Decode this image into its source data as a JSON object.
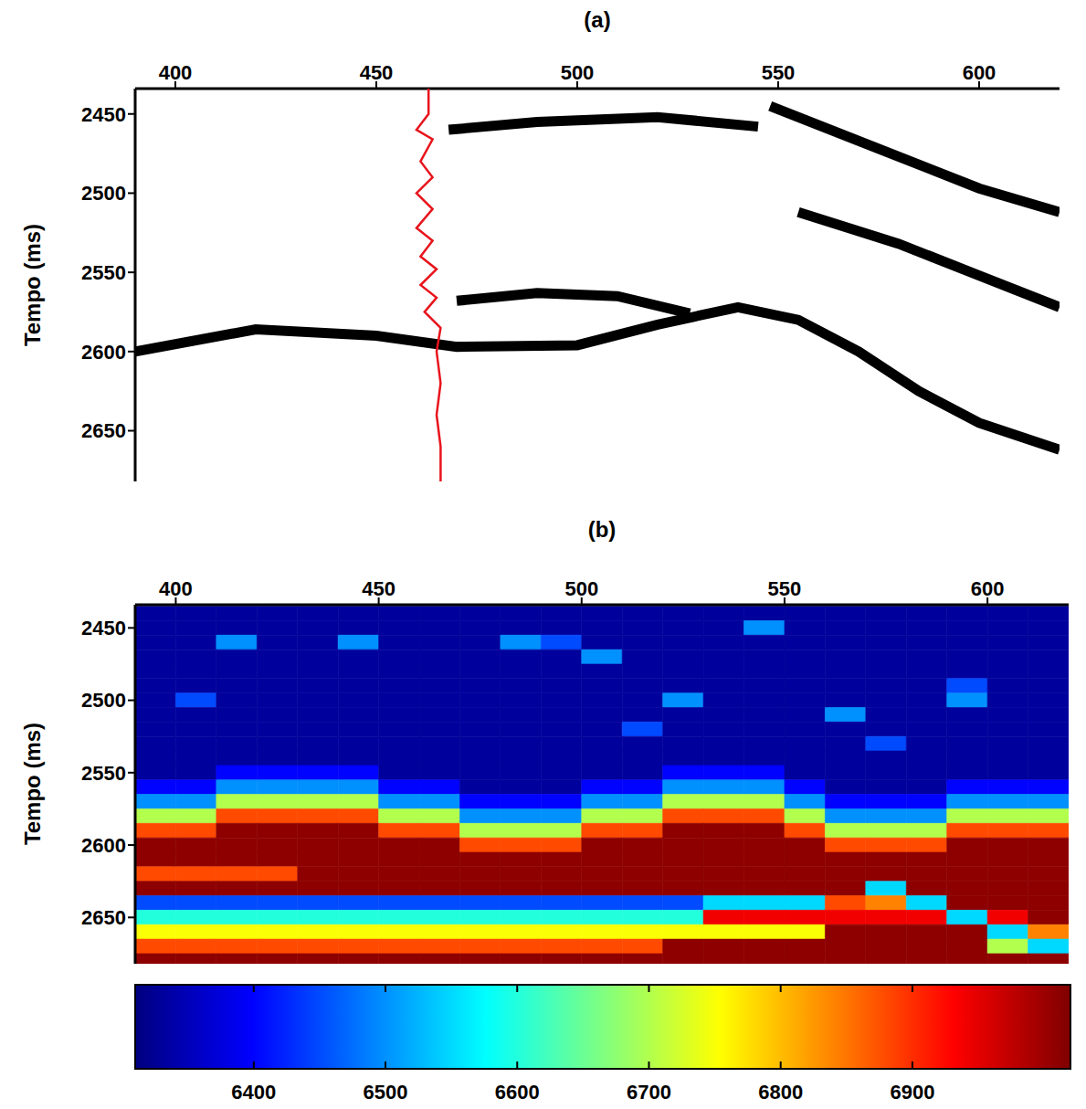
{
  "chart_data": [
    {
      "type": "line",
      "title": "(a)",
      "y_label": "Tempo (ms)",
      "xlim": [
        390,
        620
      ],
      "xticks": [
        400,
        450,
        500,
        550,
        600
      ],
      "ylim": [
        2434,
        2682
      ],
      "yticks": [
        2450,
        2500,
        2550,
        2600,
        2650
      ],
      "series": [
        {
          "color": "#000000",
          "line_style": "thick",
          "x": [
            468,
            490,
            520,
            545
          ],
          "values": [
            2460,
            2455,
            2452,
            2458
          ]
        },
        {
          "color": "#000000",
          "line_style": "thick",
          "x": [
            548,
            575,
            600,
            620
          ],
          "values": [
            2445,
            2472,
            2497,
            2512
          ]
        },
        {
          "color": "#000000",
          "line_style": "thick",
          "x": [
            555,
            580,
            600,
            620
          ],
          "values": [
            2512,
            2532,
            2552,
            2572
          ]
        },
        {
          "color": "#000000",
          "line_style": "thick",
          "x": [
            390,
            420,
            450,
            470,
            500,
            520,
            540,
            555,
            570,
            585,
            600,
            620
          ],
          "values": [
            2600,
            2586,
            2590,
            2597,
            2596,
            2583,
            2572,
            2580,
            2600,
            2625,
            2645,
            2662
          ]
        },
        {
          "color": "#000000",
          "line_style": "thick",
          "x": [
            470,
            490,
            510,
            528
          ],
          "values": [
            2568,
            2563,
            2565,
            2576
          ]
        },
        {
          "color": "#e8141c",
          "line_style": "solid",
          "x": [
            463,
            463,
            460,
            464,
            461,
            464,
            460,
            464,
            460,
            464,
            461,
            465,
            461,
            465,
            462,
            466,
            465,
            466,
            465,
            466,
            466
          ],
          "values": [
            2434,
            2450,
            2460,
            2466,
            2480,
            2490,
            2500,
            2510,
            2522,
            2530,
            2540,
            2548,
            2558,
            2566,
            2575,
            2585,
            2600,
            2620,
            2640,
            2660,
            2682
          ]
        }
      ]
    },
    {
      "type": "heatmap",
      "title": "(b)",
      "y_label": "Tempo (ms)",
      "xlim": [
        390,
        620
      ],
      "xticks": [
        400,
        450,
        500,
        550,
        600
      ],
      "ylim": [
        2434,
        2682
      ],
      "yticks": [
        2450,
        2500,
        2550,
        2600,
        2650
      ],
      "x": [
        395,
        405,
        415,
        425,
        435,
        445,
        455,
        465,
        475,
        485,
        495,
        505,
        515,
        525,
        535,
        545,
        555,
        565,
        575,
        585,
        595,
        605,
        615
      ],
      "y": [
        2440,
        2450,
        2460,
        2470,
        2480,
        2490,
        2500,
        2510,
        2520,
        2530,
        2540,
        2550,
        2560,
        2570,
        2580,
        2590,
        2600,
        2610,
        2620,
        2630,
        2640,
        2650,
        2660,
        2670,
        2680
      ],
      "cells": [
        [
          6330,
          6330,
          6330,
          6330,
          6330,
          6330,
          6330,
          6330,
          6330,
          6330,
          6330,
          6330,
          6330,
          6330,
          6330,
          6330,
          6330,
          6330,
          6330,
          6330,
          6330,
          6330,
          6330
        ],
        [
          6330,
          6330,
          6330,
          6330,
          6330,
          6330,
          6330,
          6330,
          6330,
          6330,
          6330,
          6330,
          6330,
          6330,
          6330,
          6500,
          6330,
          6330,
          6330,
          6330,
          6330,
          6330,
          6330
        ],
        [
          6330,
          6330,
          6500,
          6330,
          6330,
          6500,
          6330,
          6330,
          6330,
          6500,
          6450,
          6330,
          6330,
          6330,
          6330,
          6330,
          6330,
          6330,
          6330,
          6330,
          6330,
          6330,
          6330
        ],
        [
          6330,
          6330,
          6330,
          6330,
          6330,
          6330,
          6330,
          6330,
          6330,
          6330,
          6330,
          6500,
          6330,
          6330,
          6330,
          6330,
          6330,
          6330,
          6330,
          6330,
          6330,
          6330,
          6330
        ],
        [
          6330,
          6330,
          6330,
          6330,
          6330,
          6330,
          6330,
          6330,
          6330,
          6330,
          6330,
          6330,
          6330,
          6330,
          6330,
          6330,
          6330,
          6330,
          6330,
          6330,
          6330,
          6330,
          6330
        ],
        [
          6330,
          6330,
          6330,
          6330,
          6330,
          6330,
          6330,
          6330,
          6330,
          6330,
          6330,
          6330,
          6330,
          6330,
          6330,
          6330,
          6330,
          6330,
          6330,
          6330,
          6450,
          6330,
          6330
        ],
        [
          6330,
          6450,
          6330,
          6330,
          6330,
          6330,
          6330,
          6330,
          6330,
          6330,
          6330,
          6330,
          6330,
          6500,
          6330,
          6330,
          6330,
          6330,
          6330,
          6330,
          6500,
          6330,
          6330
        ],
        [
          6330,
          6330,
          6330,
          6330,
          6330,
          6330,
          6330,
          6330,
          6330,
          6330,
          6330,
          6330,
          6330,
          6330,
          6330,
          6330,
          6330,
          6500,
          6330,
          6330,
          6330,
          6330,
          6330
        ],
        [
          6330,
          6330,
          6330,
          6330,
          6330,
          6330,
          6330,
          6330,
          6330,
          6330,
          6330,
          6330,
          6450,
          6330,
          6330,
          6330,
          6330,
          6330,
          6330,
          6330,
          6330,
          6330,
          6330
        ],
        [
          6330,
          6330,
          6330,
          6330,
          6330,
          6330,
          6330,
          6330,
          6330,
          6330,
          6330,
          6330,
          6330,
          6330,
          6330,
          6330,
          6330,
          6330,
          6450,
          6330,
          6330,
          6330,
          6330
        ],
        [
          6330,
          6330,
          6330,
          6330,
          6330,
          6330,
          6330,
          6330,
          6330,
          6330,
          6330,
          6330,
          6330,
          6330,
          6330,
          6330,
          6330,
          6330,
          6330,
          6330,
          6330,
          6330,
          6330
        ],
        [
          6330,
          6330,
          6400,
          6400,
          6400,
          6400,
          6330,
          6330,
          6330,
          6330,
          6330,
          6330,
          6330,
          6400,
          6400,
          6400,
          6330,
          6330,
          6330,
          6330,
          6330,
          6330,
          6330
        ],
        [
          6400,
          6400,
          6500,
          6500,
          6500,
          6500,
          6400,
          6400,
          6330,
          6330,
          6330,
          6400,
          6400,
          6500,
          6500,
          6500,
          6400,
          6330,
          6330,
          6330,
          6400,
          6400,
          6400
        ],
        [
          6500,
          6500,
          6700,
          6700,
          6700,
          6700,
          6500,
          6500,
          6400,
          6400,
          6400,
          6500,
          6500,
          6700,
          6700,
          6700,
          6500,
          6400,
          6400,
          6400,
          6500,
          6500,
          6500
        ],
        [
          6700,
          6700,
          6880,
          6880,
          6880,
          6880,
          6700,
          6700,
          6500,
          6500,
          6500,
          6700,
          6700,
          6880,
          6880,
          6880,
          6700,
          6500,
          6500,
          6500,
          6700,
          6700,
          6700
        ],
        [
          6880,
          6880,
          7010,
          7010,
          7010,
          7010,
          6880,
          6880,
          6700,
          6700,
          6700,
          6880,
          6880,
          7010,
          7010,
          7010,
          6880,
          6700,
          6700,
          6700,
          6880,
          6880,
          6880
        ],
        [
          7010,
          7010,
          7010,
          7010,
          7010,
          7010,
          7010,
          7010,
          6880,
          6880,
          6880,
          7010,
          7010,
          7010,
          7010,
          7010,
          7010,
          6880,
          6880,
          6880,
          7010,
          7010,
          7010
        ],
        [
          7010,
          7010,
          7010,
          7010,
          7010,
          7010,
          7010,
          7010,
          7010,
          7010,
          7010,
          7010,
          7010,
          7010,
          7010,
          7010,
          7010,
          7010,
          7010,
          7010,
          7010,
          7010,
          7010
        ],
        [
          6880,
          6880,
          6880,
          6880,
          7010,
          7010,
          7010,
          7010,
          7010,
          7010,
          7010,
          7010,
          7010,
          7010,
          7010,
          7010,
          7010,
          7010,
          7010,
          7010,
          7010,
          7010,
          7010
        ],
        [
          7010,
          7010,
          7010,
          7010,
          7010,
          7010,
          7010,
          7010,
          7010,
          7010,
          7010,
          7010,
          7010,
          7010,
          7010,
          7010,
          7010,
          7010,
          6550,
          7010,
          7010,
          7010,
          7010
        ],
        [
          6450,
          6450,
          6450,
          6450,
          6450,
          6450,
          6450,
          6450,
          6450,
          6450,
          6450,
          6450,
          6450,
          6450,
          6550,
          6550,
          6550,
          6880,
          6840,
          6550,
          7010,
          7010,
          7010
        ],
        [
          6600,
          6600,
          6600,
          6600,
          6600,
          6600,
          6600,
          6600,
          6600,
          6600,
          6600,
          6600,
          6600,
          6600,
          6940,
          6940,
          6940,
          6940,
          6940,
          6940,
          6550,
          6940,
          7010
        ],
        [
          6750,
          6750,
          6750,
          6750,
          6750,
          6750,
          6750,
          6750,
          6750,
          6750,
          6750,
          6750,
          6750,
          6750,
          6750,
          6750,
          6750,
          7010,
          7010,
          7010,
          7010,
          6550,
          6840
        ],
        [
          6880,
          6880,
          6880,
          6880,
          6880,
          6880,
          6880,
          6880,
          6880,
          6880,
          6880,
          6880,
          6880,
          7010,
          7010,
          7010,
          7010,
          7010,
          7010,
          7010,
          7010,
          6700,
          6550
        ],
        [
          7010,
          7010,
          7010,
          7010,
          7010,
          7010,
          7010,
          7010,
          7010,
          7010,
          7010,
          7010,
          7010,
          7010,
          7010,
          7010,
          7010,
          7010,
          7010,
          7010,
          7010,
          7010,
          7010
        ]
      ],
      "colorbar": {
        "range": [
          6310,
          7020
        ],
        "ticks": [
          6400,
          6500,
          6600,
          6700,
          6800,
          6900
        ]
      }
    }
  ]
}
